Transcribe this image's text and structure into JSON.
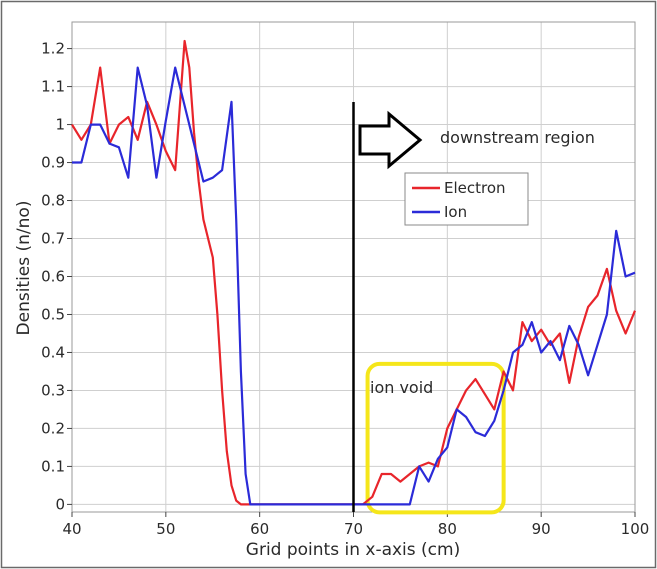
{
  "chart_data": {
    "type": "line",
    "xlabel": "Grid points in x-axis (cm)",
    "ylabel": "Densities (n/no)",
    "xlim": [
      40,
      100
    ],
    "ylim": [
      -0.02,
      1.27
    ],
    "x_ticks": [
      "40",
      "50",
      "60",
      "70",
      "80",
      "90",
      "100"
    ],
    "y_ticks": [
      "0",
      "0.1",
      "0.2",
      "0.3",
      "0.4",
      "0.5",
      "0.6",
      "0.7",
      "0.8",
      "0.9",
      "1",
      "1.1",
      "1.2"
    ],
    "grid": true,
    "legend_position": "right, middle",
    "series": [
      {
        "name": "Electron",
        "color": "#e8252b",
        "points": [
          [
            40,
            1.0
          ],
          [
            41,
            0.96
          ],
          [
            42,
            1.0
          ],
          [
            43,
            1.15
          ],
          [
            44,
            0.95
          ],
          [
            45,
            1.0
          ],
          [
            46,
            1.02
          ],
          [
            47,
            0.96
          ],
          [
            48,
            1.06
          ],
          [
            49,
            1.0
          ],
          [
            50,
            0.93
          ],
          [
            51,
            0.88
          ],
          [
            52,
            1.22
          ],
          [
            52.5,
            1.15
          ],
          [
            53,
            0.98
          ],
          [
            53.5,
            0.85
          ],
          [
            54,
            0.75
          ],
          [
            55,
            0.65
          ],
          [
            55.5,
            0.5
          ],
          [
            56,
            0.3
          ],
          [
            56.5,
            0.14
          ],
          [
            57,
            0.05
          ],
          [
            57.5,
            0.01
          ],
          [
            58,
            0.0
          ],
          [
            70,
            0.0
          ],
          [
            71,
            0.0
          ],
          [
            72,
            0.02
          ],
          [
            73,
            0.08
          ],
          [
            74,
            0.08
          ],
          [
            75,
            0.06
          ],
          [
            76,
            0.08
          ],
          [
            77,
            0.1
          ],
          [
            78,
            0.11
          ],
          [
            79,
            0.1
          ],
          [
            80,
            0.2
          ],
          [
            81,
            0.25
          ],
          [
            82,
            0.3
          ],
          [
            83,
            0.33
          ],
          [
            84,
            0.29
          ],
          [
            85,
            0.25
          ],
          [
            86,
            0.35
          ],
          [
            87,
            0.3
          ],
          [
            88,
            0.48
          ],
          [
            89,
            0.43
          ],
          [
            90,
            0.46
          ],
          [
            91,
            0.42
          ],
          [
            92,
            0.45
          ],
          [
            93,
            0.32
          ],
          [
            94,
            0.44
          ],
          [
            95,
            0.52
          ],
          [
            96,
            0.55
          ],
          [
            97,
            0.62
          ],
          [
            98,
            0.51
          ],
          [
            99,
            0.45
          ],
          [
            100,
            0.51
          ]
        ]
      },
      {
        "name": "Ion",
        "color": "#2b2bd8",
        "points": [
          [
            40,
            0.9
          ],
          [
            41,
            0.9
          ],
          [
            42,
            1.0
          ],
          [
            43,
            1.0
          ],
          [
            44,
            0.95
          ],
          [
            45,
            0.94
          ],
          [
            46,
            0.86
          ],
          [
            47,
            1.15
          ],
          [
            48,
            1.05
          ],
          [
            49,
            0.86
          ],
          [
            50,
            1.01
          ],
          [
            51,
            1.15
          ],
          [
            52,
            1.05
          ],
          [
            53,
            0.95
          ],
          [
            54,
            0.85
          ],
          [
            55,
            0.86
          ],
          [
            56,
            0.88
          ],
          [
            57,
            1.06
          ],
          [
            57.5,
            0.75
          ],
          [
            58,
            0.35
          ],
          [
            58.5,
            0.08
          ],
          [
            59,
            0.0
          ],
          [
            75,
            0.0
          ],
          [
            76,
            0.0
          ],
          [
            77,
            0.1
          ],
          [
            78,
            0.06
          ],
          [
            79,
            0.12
          ],
          [
            80,
            0.15
          ],
          [
            81,
            0.25
          ],
          [
            82,
            0.23
          ],
          [
            83,
            0.19
          ],
          [
            84,
            0.18
          ],
          [
            85,
            0.22
          ],
          [
            86,
            0.3
          ],
          [
            87,
            0.4
          ],
          [
            88,
            0.42
          ],
          [
            89,
            0.48
          ],
          [
            90,
            0.4
          ],
          [
            91,
            0.43
          ],
          [
            92,
            0.38
          ],
          [
            93,
            0.47
          ],
          [
            94,
            0.42
          ],
          [
            95,
            0.34
          ],
          [
            96,
            0.42
          ],
          [
            97,
            0.5
          ],
          [
            98,
            0.72
          ],
          [
            99,
            0.6
          ],
          [
            100,
            0.61
          ]
        ]
      }
    ],
    "vertical_line_x": 70,
    "annotations": {
      "arrow_label": "downstream region",
      "box_label": "ion void",
      "box_x_range": [
        71.5,
        86
      ],
      "box_y_range": [
        0.0,
        0.37
      ]
    },
    "colors": {
      "box": "#f5e61a",
      "frame": "#6a6a6a",
      "grid": "#cfcfcf",
      "vline": "#000000"
    }
  }
}
